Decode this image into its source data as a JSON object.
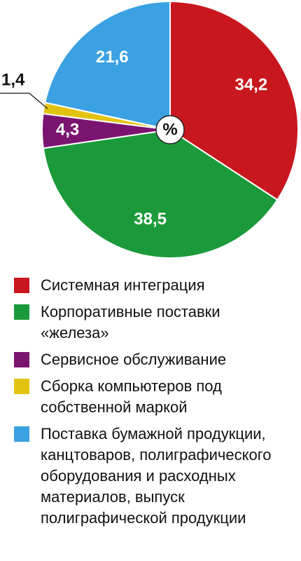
{
  "chart_data": {
    "type": "pie",
    "center_label": "%",
    "categories": [
      "Системная интеграция",
      "Корпоративные поставки «железа»",
      "Сервисное обслуживание",
      "Сборка компьютеров под собственной маркой",
      "Поставка бумажной продукции, канцтоваров, полиграфического оборудования и расходных материалов, выпуск полиграфической продукции"
    ],
    "values": [
      34.2,
      38.5,
      4.3,
      1.4,
      21.6
    ],
    "value_labels": [
      "34,2",
      "38,5",
      "4,3",
      "1,4",
      "21,6"
    ],
    "colors": [
      "#c8171e",
      "#1b9a3b",
      "#7b1470",
      "#e3c312",
      "#3aa1e2"
    ]
  }
}
